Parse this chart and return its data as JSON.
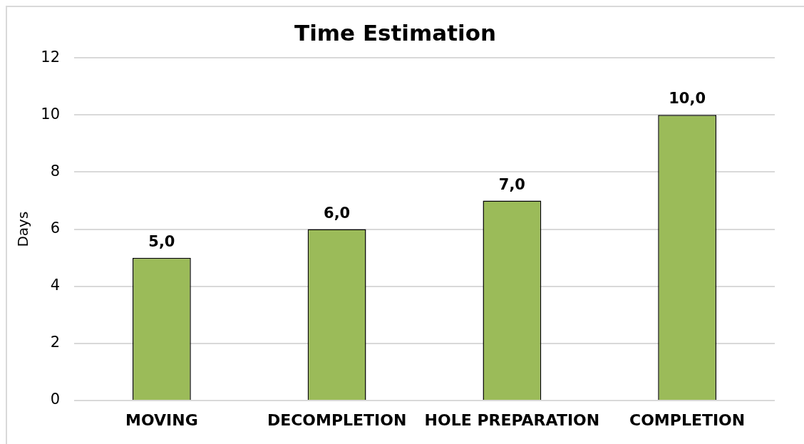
{
  "chart_data": {
    "type": "bar",
    "title": "Time Estimation",
    "ylabel": "Days",
    "categories": [
      "MOVING",
      "DECOMPLETION",
      "HOLE PREPARATION",
      "COMPLETION"
    ],
    "values": [
      5,
      6,
      7,
      10
    ],
    "color": "#9bbb59",
    "value_labels": [
      "5,0",
      "6,0",
      "7,0",
      "10,0"
    ],
    "ylim": [
      0,
      12
    ],
    "yticks": [
      0,
      2,
      4,
      6,
      8,
      10,
      12
    ],
    "grid": "y",
    "legend": false
  }
}
